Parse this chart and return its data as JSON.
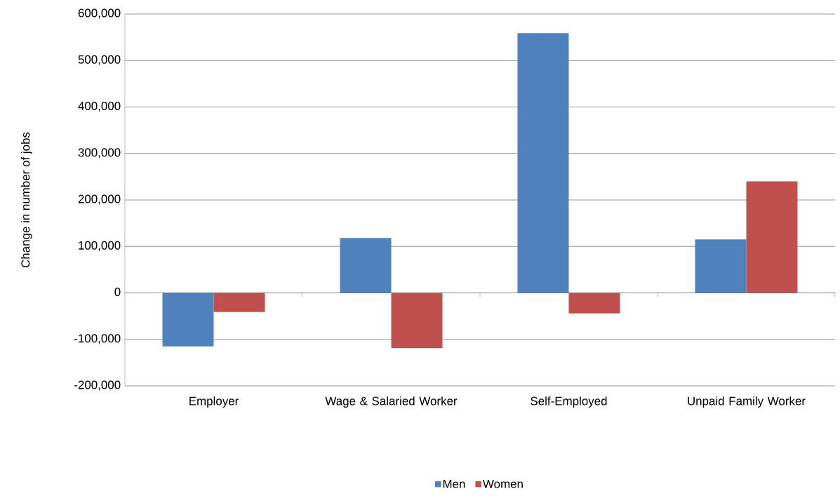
{
  "chart_data": {
    "type": "bar",
    "ylabel": "Change in number of jobs",
    "categories": [
      "Employer",
      "Wage & Salaried Worker",
      "Self-Employed",
      "Unpaid Family Worker"
    ],
    "series": [
      {
        "name": "Men",
        "color": "#4f81bd",
        "values": [
          -115000,
          118000,
          559000,
          115000
        ]
      },
      {
        "name": "Women",
        "color": "#c0504d",
        "values": [
          -41000,
          -119000,
          -44000,
          240000
        ]
      }
    ],
    "ylim": [
      -200000,
      600000
    ],
    "yticks": [
      {
        "value": -200000,
        "label": "-200,000"
      },
      {
        "value": -100000,
        "label": "-100,000"
      },
      {
        "value": 0,
        "label": "0"
      },
      {
        "value": 100000,
        "label": "100,000"
      },
      {
        "value": 200000,
        "label": "200,000"
      },
      {
        "value": 300000,
        "label": "300,000"
      },
      {
        "value": 400000,
        "label": "400,000"
      },
      {
        "value": 500000,
        "label": "500,000"
      },
      {
        "value": 600000,
        "label": "600,000"
      }
    ],
    "grid": "y",
    "legend": "bottom"
  }
}
